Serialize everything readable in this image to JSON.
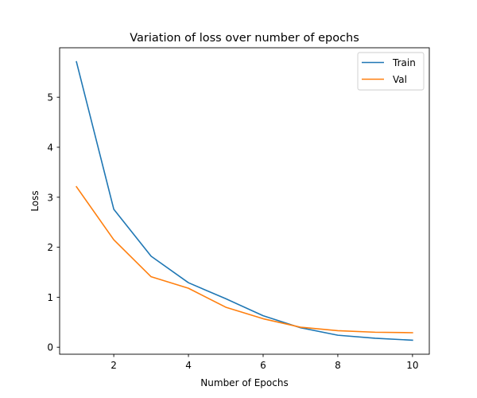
{
  "chart_data": {
    "type": "line",
    "title": "Variation of loss over number of epochs",
    "xlabel": "Number of Epochs",
    "ylabel": "Loss",
    "x": [
      1,
      2,
      3,
      4,
      5,
      6,
      7,
      8,
      9,
      10
    ],
    "xlim": [
      0.55,
      10.45
    ],
    "ylim": [
      -0.14,
      5.99
    ],
    "xticks": [
      2,
      4,
      6,
      8,
      10
    ],
    "yticks": [
      0,
      1,
      2,
      3,
      4,
      5
    ],
    "grid": false,
    "legend_position": "top-right",
    "series": [
      {
        "name": "Train",
        "color": "#1f77b4",
        "values": [
          5.71,
          2.76,
          1.82,
          1.29,
          0.97,
          0.63,
          0.39,
          0.24,
          0.18,
          0.14
        ]
      },
      {
        "name": "Val",
        "color": "#ff7f0e",
        "values": [
          3.21,
          2.15,
          1.41,
          1.18,
          0.8,
          0.57,
          0.4,
          0.33,
          0.3,
          0.29
        ]
      }
    ]
  }
}
